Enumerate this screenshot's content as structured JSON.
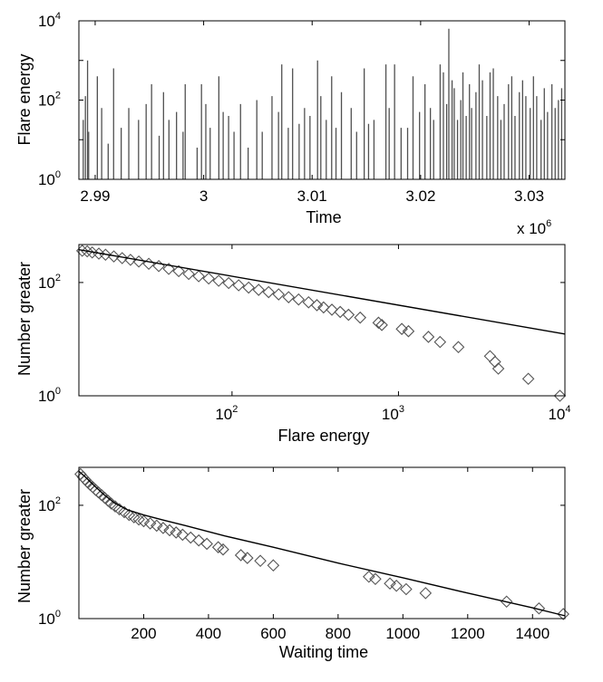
{
  "colors": {
    "series": "#505050",
    "markers": "#555555",
    "fit": "#000000"
  },
  "chart_data": [
    {
      "type": "bar",
      "title": "",
      "xlabel": "Time",
      "ylabel": "Flare energy",
      "xlim": [
        2.9885,
        3.0333
      ],
      "ylim_log10": [
        0,
        4
      ],
      "x_multiplier_label": "x 10",
      "x_multiplier_exp": "6",
      "xticks": [
        2.99,
        3.0,
        3.01,
        3.02,
        3.03
      ],
      "xtick_labels": [
        "2.99",
        "3",
        "3.01",
        "3.02",
        "3.03"
      ],
      "yticks_log10": [
        0,
        2,
        4
      ],
      "ytick_labels": [
        {
          "base": "10",
          "exp": "0"
        },
        {
          "base": "10",
          "exp": "2"
        },
        {
          "base": "10",
          "exp": "4"
        }
      ],
      "spike_times": [
        2.9889,
        2.9891,
        2.9893,
        2.9894,
        2.9902,
        2.9906,
        2.9912,
        2.9917,
        2.9924,
        2.9931,
        2.994,
        2.9947,
        2.9952,
        2.9959,
        2.9963,
        2.9968,
        2.9975,
        2.9981,
        2.9983,
        2.9994,
        2.9998,
        3.0002,
        3.0006,
        3.0014,
        3.0018,
        3.0023,
        3.0028,
        3.0034,
        3.0041,
        3.0049,
        3.0054,
        3.0063,
        3.0069,
        3.0072,
        3.0078,
        3.0082,
        3.0088,
        3.0093,
        3.0098,
        3.0105,
        3.0108,
        3.0113,
        3.0118,
        3.0122,
        3.0127,
        3.0136,
        3.0141,
        3.0148,
        3.0152,
        3.0157,
        3.0168,
        3.0171,
        3.0176,
        3.0182,
        3.0188,
        3.0193,
        3.0199,
        3.0204,
        3.0209,
        3.0212,
        3.0218,
        3.0221,
        3.0224,
        3.0226,
        3.0229,
        3.0231,
        3.0234,
        3.0237,
        3.0239,
        3.0242,
        3.0245,
        3.0247,
        3.0251,
        3.0254,
        3.0257,
        3.0261,
        3.0264,
        3.0267,
        3.0271,
        3.0274,
        3.0277,
        3.0281,
        3.0284,
        3.0287,
        3.0291,
        3.0294,
        3.0297,
        3.0301,
        3.0304,
        3.0307,
        3.0311,
        3.0314,
        3.0317,
        3.0321,
        3.0324,
        3.0327,
        3.033
      ],
      "spike_log10_energy": [
        1.5,
        2.1,
        3.0,
        1.2,
        2.6,
        1.8,
        0.9,
        2.8,
        1.3,
        1.8,
        1.5,
        1.9,
        2.4,
        1.1,
        2.2,
        1.5,
        1.7,
        1.2,
        2.4,
        0.8,
        2.4,
        1.9,
        1.3,
        2.6,
        1.7,
        1.6,
        1.2,
        1.9,
        0.8,
        2.0,
        1.2,
        2.1,
        1.7,
        2.9,
        1.3,
        2.8,
        1.4,
        1.8,
        1.6,
        3.0,
        2.1,
        1.5,
        2.6,
        1.3,
        2.2,
        1.8,
        1.2,
        2.8,
        1.4,
        1.5,
        2.9,
        1.8,
        2.9,
        1.3,
        1.3,
        2.6,
        1.7,
        2.4,
        1.8,
        1.5,
        2.9,
        2.7,
        1.9,
        3.8,
        2.5,
        2.3,
        1.5,
        2.0,
        2.7,
        1.6,
        2.4,
        1.8,
        2.2,
        2.9,
        2.5,
        1.6,
        2.7,
        2.8,
        2.1,
        1.5,
        1.9,
        2.4,
        2.6,
        1.6,
        2.2,
        2.5,
        2.1,
        1.8,
        2.6,
        2.1,
        1.5,
        2.3,
        1.7,
        2.4,
        1.8,
        2.0,
        2.3
      ]
    },
    {
      "type": "scatter",
      "title": "",
      "xlabel": "Flare energy",
      "ylabel": "Number greater",
      "xscale": "log",
      "yscale": "log",
      "xlim_log10": [
        1.08,
        4
      ],
      "ylim_log10": [
        0,
        2.67
      ],
      "xticks_log10": [
        2,
        3,
        4
      ],
      "xtick_labels": [
        {
          "base": "10",
          "exp": "2"
        },
        {
          "base": "10",
          "exp": "3"
        },
        {
          "base": "10",
          "exp": "4"
        }
      ],
      "yticks_log10": [
        0,
        2
      ],
      "ytick_labels": [
        {
          "base": "10",
          "exp": "0"
        },
        {
          "base": "10",
          "exp": "2"
        }
      ],
      "marker": "diamond",
      "points_log10": [
        [
          1.1,
          2.56
        ],
        [
          1.13,
          2.55
        ],
        [
          1.16,
          2.53
        ],
        [
          1.2,
          2.51
        ],
        [
          1.24,
          2.49
        ],
        [
          1.29,
          2.46
        ],
        [
          1.34,
          2.43
        ],
        [
          1.39,
          2.4
        ],
        [
          1.44,
          2.37
        ],
        [
          1.5,
          2.33
        ],
        [
          1.56,
          2.29
        ],
        [
          1.62,
          2.24
        ],
        [
          1.68,
          2.2
        ],
        [
          1.74,
          2.15
        ],
        [
          1.8,
          2.11
        ],
        [
          1.86,
          2.07
        ],
        [
          1.92,
          2.03
        ],
        [
          1.98,
          1.99
        ],
        [
          2.04,
          1.95
        ],
        [
          2.1,
          1.91
        ],
        [
          2.16,
          1.87
        ],
        [
          2.22,
          1.83
        ],
        [
          2.28,
          1.79
        ],
        [
          2.34,
          1.74
        ],
        [
          2.4,
          1.7
        ],
        [
          2.46,
          1.65
        ],
        [
          2.51,
          1.6
        ],
        [
          2.55,
          1.56
        ],
        [
          2.6,
          1.52
        ],
        [
          2.65,
          1.48
        ],
        [
          2.7,
          1.43
        ],
        [
          2.77,
          1.38
        ],
        [
          2.88,
          1.29
        ],
        [
          2.9,
          1.25
        ],
        [
          3.02,
          1.18
        ],
        [
          3.06,
          1.14
        ],
        [
          3.18,
          1.04
        ],
        [
          3.25,
          0.95
        ],
        [
          3.36,
          0.86
        ],
        [
          3.55,
          0.7
        ],
        [
          3.58,
          0.6
        ],
        [
          3.6,
          0.48
        ],
        [
          3.78,
          0.3
        ],
        [
          3.97,
          0.0
        ]
      ],
      "fit_line_log10": [
        [
          1.08,
          2.58
        ],
        [
          4.0,
          1.09
        ]
      ]
    },
    {
      "type": "scatter",
      "title": "",
      "xlabel": "Waiting time",
      "ylabel": "Number greater",
      "xscale": "linear",
      "yscale": "log",
      "xlim": [
        0,
        1500
      ],
      "ylim_log10": [
        0,
        2.67
      ],
      "xticks": [
        200,
        400,
        600,
        800,
        1000,
        1200,
        1400
      ],
      "xtick_labels": [
        "200",
        "400",
        "600",
        "800",
        "1000",
        "1200",
        "1400"
      ],
      "yticks_log10": [
        0,
        2
      ],
      "ytick_labels": [
        {
          "base": "10",
          "exp": "0"
        },
        {
          "base": "10",
          "exp": "2"
        }
      ],
      "marker": "diamond",
      "points": [
        [
          5,
          2.55
        ],
        [
          12,
          2.5
        ],
        [
          20,
          2.45
        ],
        [
          28,
          2.4
        ],
        [
          35,
          2.36
        ],
        [
          43,
          2.32
        ],
        [
          52,
          2.27
        ],
        [
          60,
          2.23
        ],
        [
          70,
          2.18
        ],
        [
          80,
          2.13
        ],
        [
          90,
          2.08
        ],
        [
          100,
          2.03
        ],
        [
          112,
          1.98
        ],
        [
          125,
          1.93
        ],
        [
          140,
          1.88
        ],
        [
          155,
          1.83
        ],
        [
          170,
          1.79
        ],
        [
          185,
          1.75
        ],
        [
          200,
          1.72
        ],
        [
          220,
          1.68
        ],
        [
          240,
          1.64
        ],
        [
          260,
          1.6
        ],
        [
          280,
          1.56
        ],
        [
          300,
          1.52
        ],
        [
          320,
          1.48
        ],
        [
          345,
          1.43
        ],
        [
          370,
          1.38
        ],
        [
          395,
          1.32
        ],
        [
          430,
          1.26
        ],
        [
          445,
          1.22
        ],
        [
          500,
          1.12
        ],
        [
          520,
          1.07
        ],
        [
          560,
          1.02
        ],
        [
          600,
          0.94
        ],
        [
          895,
          0.74
        ],
        [
          915,
          0.7
        ],
        [
          960,
          0.62
        ],
        [
          980,
          0.58
        ],
        [
          1010,
          0.52
        ],
        [
          1070,
          0.45
        ],
        [
          1320,
          0.3
        ],
        [
          1420,
          0.18
        ],
        [
          1495,
          0.08
        ]
      ],
      "fit_curve_log10": [
        [
          0,
          2.6
        ],
        [
          20,
          2.5
        ],
        [
          45,
          2.36
        ],
        [
          75,
          2.2
        ],
        [
          110,
          2.04
        ],
        [
          150,
          1.92
        ],
        [
          200,
          1.83
        ],
        [
          260,
          1.74
        ],
        [
          330,
          1.64
        ],
        [
          450,
          1.46
        ],
        [
          600,
          1.26
        ],
        [
          800,
          0.98
        ],
        [
          1000,
          0.72
        ],
        [
          1200,
          0.45
        ],
        [
          1400,
          0.19
        ],
        [
          1500,
          0.05
        ]
      ]
    }
  ]
}
